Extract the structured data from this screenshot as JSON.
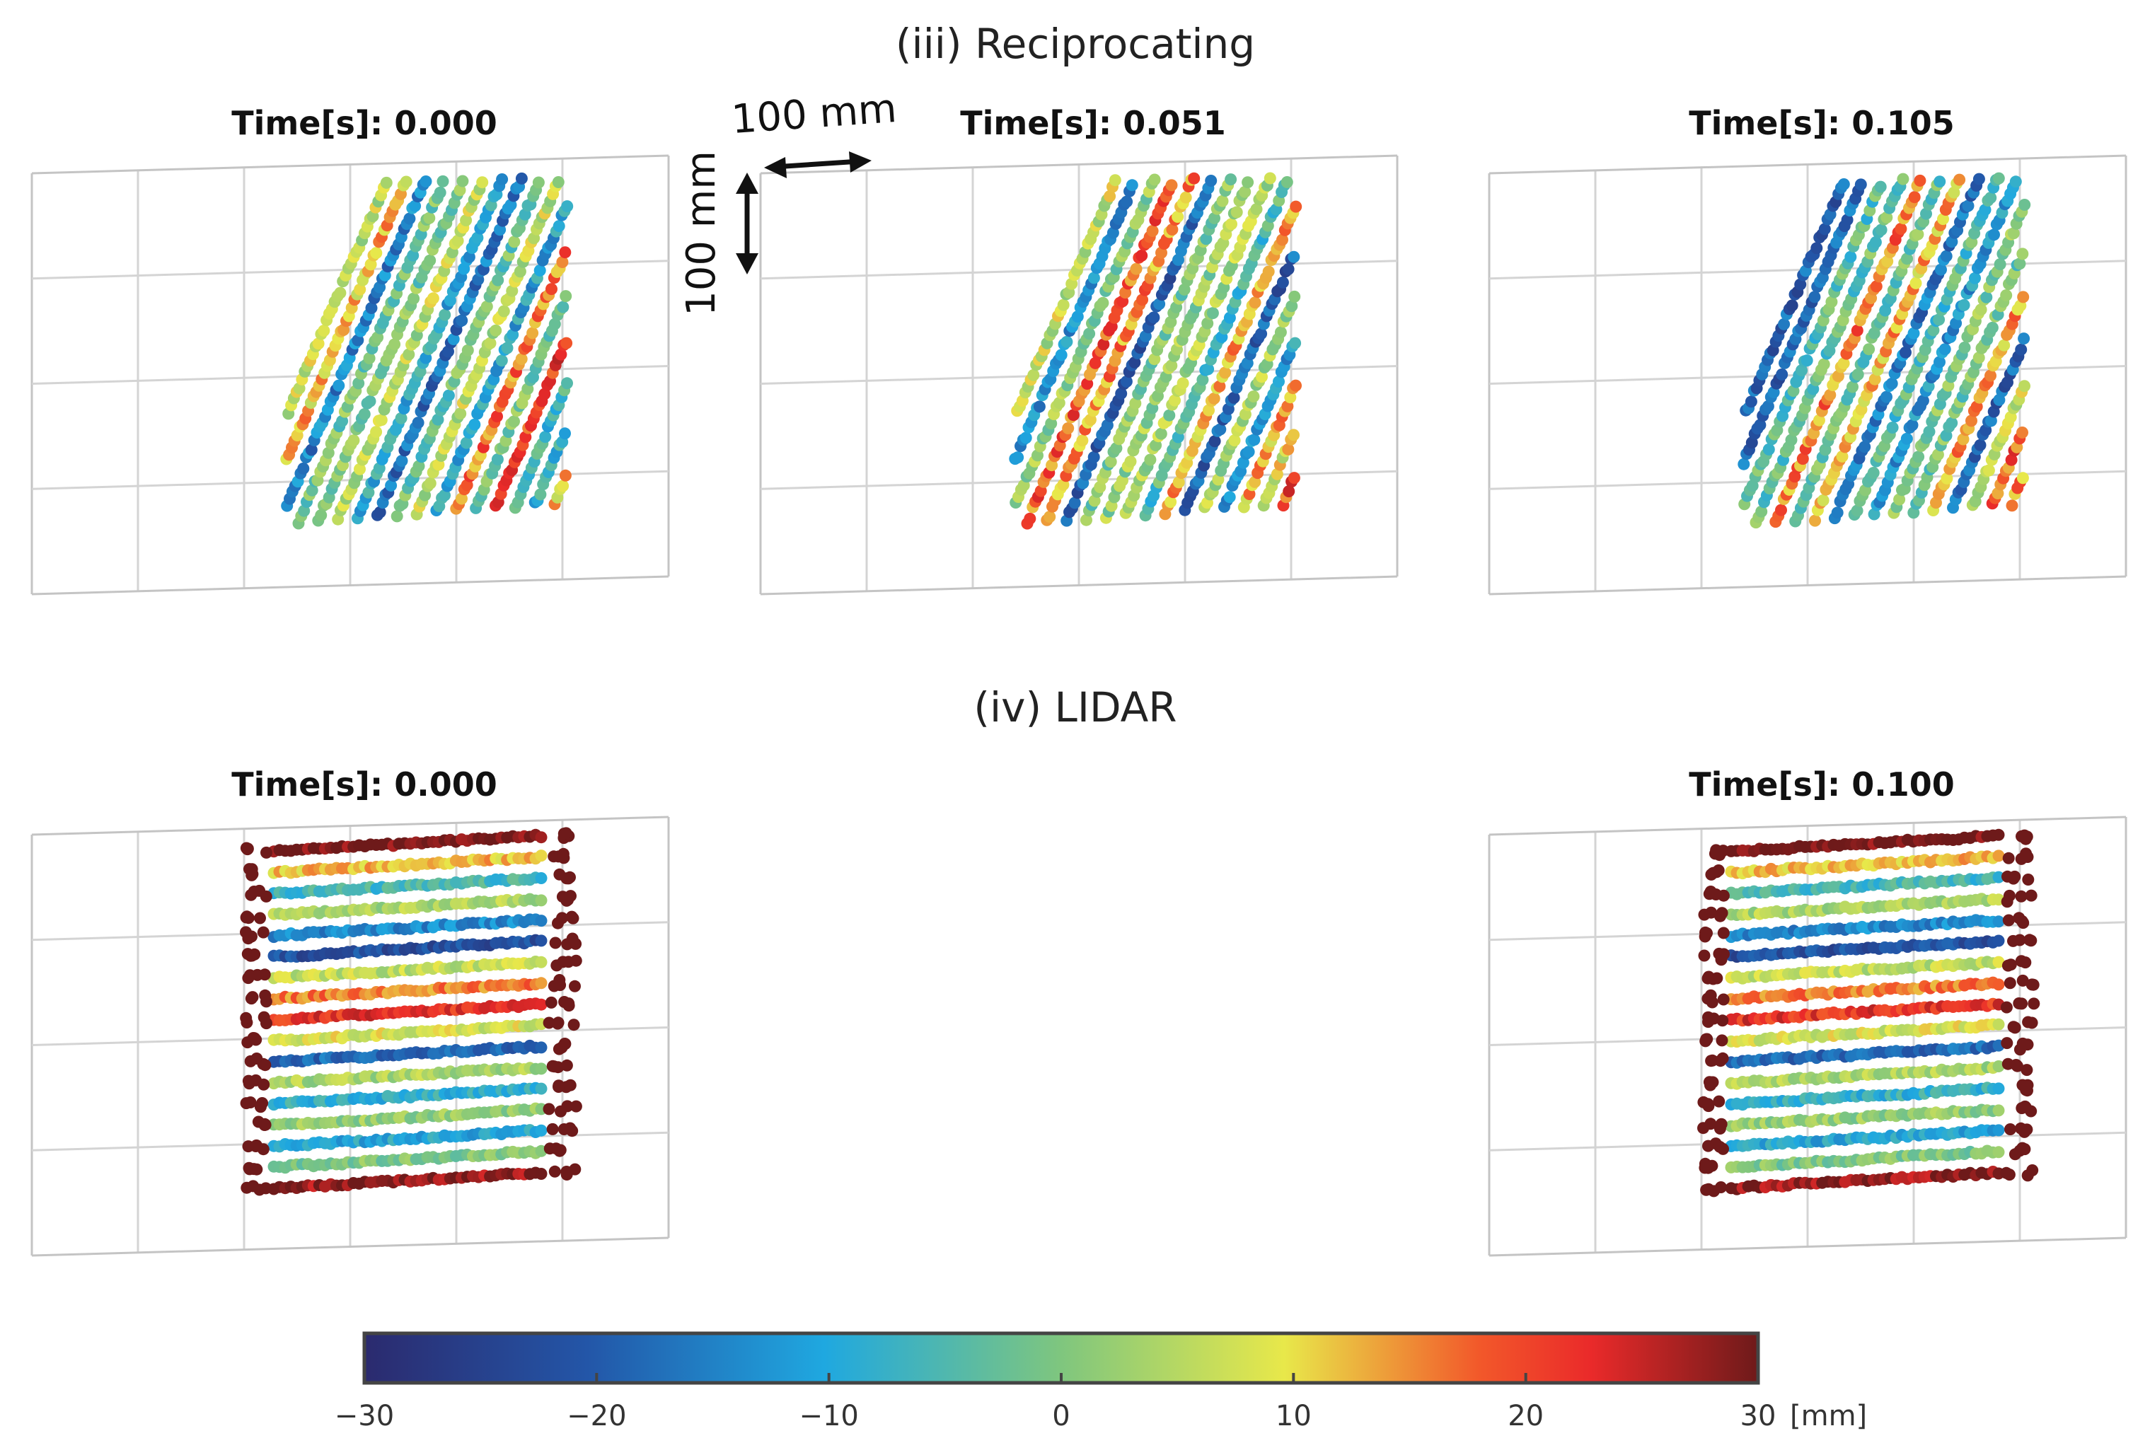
{
  "sections": [
    {
      "id": "reciprocating",
      "title": "(iii) Reciprocating"
    },
    {
      "id": "lidar",
      "title": "(iv) LIDAR"
    }
  ],
  "scale_bar": {
    "horizontal_label": "100 mm",
    "vertical_label": "100 mm"
  },
  "chart_data": [
    {
      "type": "scatter",
      "section": "reciprocating",
      "title": "Time[s]: 0.000",
      "pattern": "diagonal-stripes",
      "color_field": "depth_mm",
      "clim": [
        -30,
        30
      ],
      "x_range_mm": [
        0,
        600
      ],
      "y_range_mm": [
        0,
        400
      ],
      "grid": true
    },
    {
      "type": "scatter",
      "section": "reciprocating",
      "title": "Time[s]: 0.051",
      "pattern": "diagonal-stripes",
      "color_field": "depth_mm",
      "clim": [
        -30,
        30
      ],
      "x_range_mm": [
        0,
        600
      ],
      "y_range_mm": [
        0,
        400
      ],
      "grid": true
    },
    {
      "type": "scatter",
      "section": "reciprocating",
      "title": "Time[s]: 0.105",
      "pattern": "diagonal-stripes",
      "color_field": "depth_mm",
      "clim": [
        -30,
        30
      ],
      "x_range_mm": [
        0,
        600
      ],
      "y_range_mm": [
        0,
        400
      ],
      "grid": true
    },
    {
      "type": "scatter",
      "section": "lidar",
      "title": "Time[s]: 0.000",
      "pattern": "horizontal-scanlines",
      "scanlines": 17,
      "color_field": "depth_mm",
      "clim": [
        -30,
        30
      ],
      "x_range_mm": [
        0,
        600
      ],
      "y_range_mm": [
        0,
        400
      ],
      "grid": true
    },
    {
      "type": "scatter",
      "section": "lidar",
      "title": "Time[s]: 0.100",
      "pattern": "horizontal-scanlines",
      "scanlines": 17,
      "color_field": "depth_mm",
      "clim": [
        -30,
        30
      ],
      "x_range_mm": [
        0,
        600
      ],
      "y_range_mm": [
        0,
        400
      ],
      "grid": true
    }
  ],
  "colorbar": {
    "min": -30,
    "max": 30,
    "ticks": [
      -30,
      -20,
      -10,
      0,
      10,
      20,
      30
    ],
    "tick_labels": [
      "−30",
      "−20",
      "−10",
      "0",
      "10",
      "20",
      "30"
    ],
    "unit": "[mm]",
    "colors": [
      "#2b2a6e",
      "#2356a8",
      "#1fa8e0",
      "#7fc67e",
      "#e8e84a",
      "#f2582a",
      "#ea2a2a",
      "#6e1a1a"
    ]
  }
}
